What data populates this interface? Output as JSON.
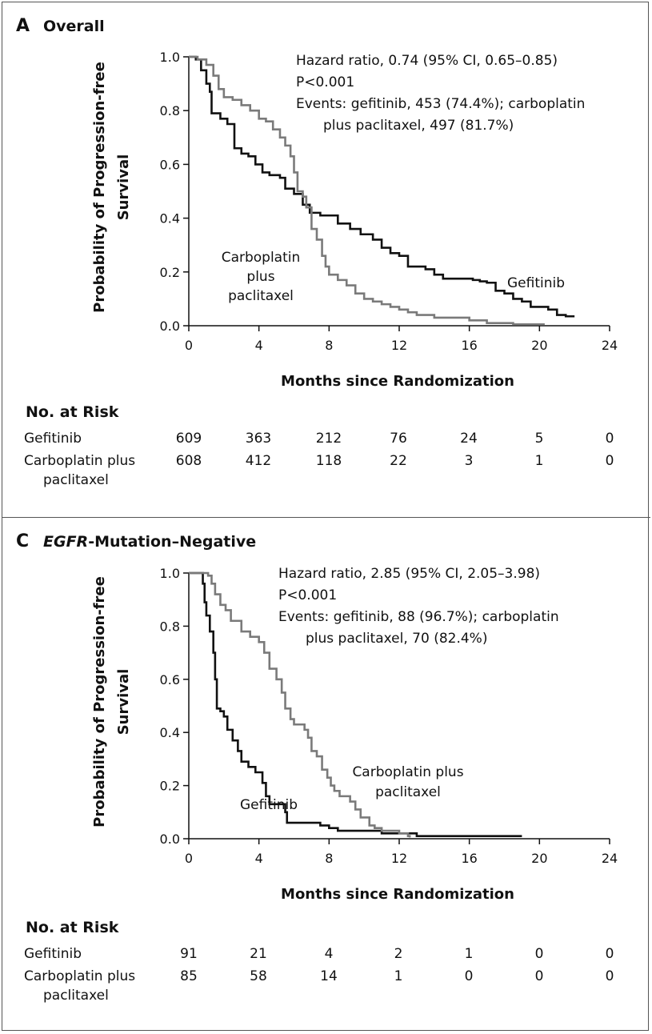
{
  "chart_data": [
    {
      "type": "line",
      "panel_letter": "A",
      "title": "Overall",
      "xlabel": "Months since Randomization",
      "ylabel_line1": "Probability of Progression-free",
      "ylabel_line2": "Survival",
      "xlim": [
        0,
        24
      ],
      "ylim": [
        0,
        1.0
      ],
      "xticks": [
        "0",
        "4",
        "8",
        "12",
        "16",
        "20",
        "24"
      ],
      "yticks": [
        "0.0",
        "0.2",
        "0.4",
        "0.6",
        "0.8",
        "1.0"
      ],
      "stats": [
        "Hazard ratio, 0.74 (95% CI, 0.65–0.85)",
        "P<0.001",
        "Events: gefitinib, 453 (74.4%); carboplatin",
        "plus paclitaxel, 497 (81.7%)"
      ],
      "series": [
        {
          "name": "Gefitinib",
          "color": "#111111",
          "label_lines": [
            "Gefitinib"
          ],
          "points": [
            [
              0,
              1.0
            ],
            [
              0.4,
              0.99
            ],
            [
              0.7,
              0.95
            ],
            [
              1.0,
              0.9
            ],
            [
              1.2,
              0.87
            ],
            [
              1.3,
              0.79
            ],
            [
              1.8,
              0.77
            ],
            [
              2.2,
              0.75
            ],
            [
              2.6,
              0.66
            ],
            [
              3.0,
              0.64
            ],
            [
              3.4,
              0.63
            ],
            [
              3.8,
              0.6
            ],
            [
              4.2,
              0.57
            ],
            [
              4.6,
              0.56
            ],
            [
              5.2,
              0.55
            ],
            [
              5.5,
              0.51
            ],
            [
              6.0,
              0.49
            ],
            [
              6.5,
              0.45
            ],
            [
              6.9,
              0.42
            ],
            [
              7.5,
              0.41
            ],
            [
              8.0,
              0.41
            ],
            [
              8.5,
              0.38
            ],
            [
              9.2,
              0.36
            ],
            [
              9.8,
              0.34
            ],
            [
              10.5,
              0.32
            ],
            [
              11.0,
              0.29
            ],
            [
              11.5,
              0.27
            ],
            [
              12.0,
              0.26
            ],
            [
              12.5,
              0.22
            ],
            [
              13.5,
              0.21
            ],
            [
              14.0,
              0.19
            ],
            [
              14.5,
              0.175
            ],
            [
              15.5,
              0.175
            ],
            [
              16.2,
              0.17
            ],
            [
              16.6,
              0.165
            ],
            [
              17.0,
              0.16
            ],
            [
              17.5,
              0.13
            ],
            [
              18.0,
              0.12
            ],
            [
              18.5,
              0.1
            ],
            [
              19.0,
              0.09
            ],
            [
              19.5,
              0.07
            ],
            [
              20.5,
              0.06
            ],
            [
              21.0,
              0.04
            ],
            [
              21.5,
              0.035
            ],
            [
              22.0,
              0.035
            ]
          ]
        },
        {
          "name": "Carboplatin plus paclitaxel",
          "color": "#7a7a7a",
          "label_lines": [
            "Carboplatin",
            "plus",
            "paclitaxel"
          ],
          "points": [
            [
              0,
              1.0
            ],
            [
              0.5,
              0.99
            ],
            [
              1.0,
              0.97
            ],
            [
              1.4,
              0.93
            ],
            [
              1.7,
              0.88
            ],
            [
              2.0,
              0.85
            ],
            [
              2.5,
              0.84
            ],
            [
              3.0,
              0.82
            ],
            [
              3.5,
              0.8
            ],
            [
              4.0,
              0.77
            ],
            [
              4.4,
              0.76
            ],
            [
              4.8,
              0.73
            ],
            [
              5.2,
              0.7
            ],
            [
              5.5,
              0.67
            ],
            [
              5.8,
              0.63
            ],
            [
              6.0,
              0.57
            ],
            [
              6.2,
              0.5
            ],
            [
              6.5,
              0.48
            ],
            [
              6.7,
              0.44
            ],
            [
              7.0,
              0.36
            ],
            [
              7.3,
              0.32
            ],
            [
              7.6,
              0.26
            ],
            [
              7.8,
              0.22
            ],
            [
              8.0,
              0.19
            ],
            [
              8.5,
              0.17
            ],
            [
              9.0,
              0.15
            ],
            [
              9.5,
              0.12
            ],
            [
              10.0,
              0.1
            ],
            [
              10.5,
              0.09
            ],
            [
              11.0,
              0.08
            ],
            [
              11.5,
              0.07
            ],
            [
              12.0,
              0.06
            ],
            [
              12.5,
              0.05
            ],
            [
              13.0,
              0.04
            ],
            [
              14.0,
              0.03
            ],
            [
              16.0,
              0.02
            ],
            [
              17.0,
              0.01
            ],
            [
              18.5,
              0.005
            ],
            [
              20.3,
              0.005
            ]
          ]
        }
      ]
    },
    {
      "type": "line",
      "panel_letter": "C",
      "title_ital": "EGFR",
      "title": "-Mutation–Negative",
      "xlabel": "Months since Randomization",
      "ylabel_line1": "Probability of Progression-free",
      "ylabel_line2": "Survival",
      "xlim": [
        0,
        24
      ],
      "ylim": [
        0,
        1.0
      ],
      "xticks": [
        "0",
        "4",
        "8",
        "12",
        "16",
        "20",
        "24"
      ],
      "yticks": [
        "0.0",
        "0.2",
        "0.4",
        "0.6",
        "0.8",
        "1.0"
      ],
      "stats": [
        "Hazard ratio, 2.85 (95% CI, 2.05–3.98)",
        "P<0.001",
        "Events: gefitinib, 88 (96.7%); carboplatin",
        "plus paclitaxel, 70 (82.4%)"
      ],
      "series": [
        {
          "name": "Gefitinib",
          "color": "#111111",
          "label_lines": [
            "Gefitinib"
          ],
          "points": [
            [
              0,
              1.0
            ],
            [
              0.7,
              1.0
            ],
            [
              0.8,
              0.96
            ],
            [
              0.9,
              0.89
            ],
            [
              1.0,
              0.84
            ],
            [
              1.2,
              0.78
            ],
            [
              1.4,
              0.7
            ],
            [
              1.5,
              0.6
            ],
            [
              1.6,
              0.49
            ],
            [
              1.8,
              0.48
            ],
            [
              2.0,
              0.46
            ],
            [
              2.2,
              0.41
            ],
            [
              2.5,
              0.37
            ],
            [
              2.8,
              0.33
            ],
            [
              3.0,
              0.29
            ],
            [
              3.4,
              0.27
            ],
            [
              3.8,
              0.25
            ],
            [
              4.2,
              0.21
            ],
            [
              4.4,
              0.16
            ],
            [
              4.6,
              0.13
            ],
            [
              5.2,
              0.13
            ],
            [
              5.5,
              0.1
            ],
            [
              5.6,
              0.06
            ],
            [
              6.0,
              0.06
            ],
            [
              7.0,
              0.06
            ],
            [
              7.5,
              0.05
            ],
            [
              8.0,
              0.04
            ],
            [
              8.3,
              0.04
            ],
            [
              8.5,
              0.03
            ],
            [
              10.0,
              0.03
            ],
            [
              11.0,
              0.02
            ],
            [
              13.0,
              0.01
            ],
            [
              19.0,
              0.01
            ]
          ]
        },
        {
          "name": "Carboplatin plus paclitaxel",
          "color": "#7a7a7a",
          "label_lines": [
            "Carboplatin plus",
            "paclitaxel"
          ],
          "points": [
            [
              0,
              1.0
            ],
            [
              0.9,
              1.0
            ],
            [
              1.1,
              0.99
            ],
            [
              1.3,
              0.96
            ],
            [
              1.5,
              0.92
            ],
            [
              1.8,
              0.88
            ],
            [
              2.1,
              0.86
            ],
            [
              2.4,
              0.82
            ],
            [
              3.0,
              0.78
            ],
            [
              3.5,
              0.76
            ],
            [
              4.0,
              0.74
            ],
            [
              4.3,
              0.7
            ],
            [
              4.6,
              0.64
            ],
            [
              5.0,
              0.6
            ],
            [
              5.3,
              0.55
            ],
            [
              5.5,
              0.49
            ],
            [
              5.8,
              0.45
            ],
            [
              6.0,
              0.43
            ],
            [
              6.6,
              0.41
            ],
            [
              6.8,
              0.38
            ],
            [
              7.0,
              0.33
            ],
            [
              7.3,
              0.31
            ],
            [
              7.6,
              0.26
            ],
            [
              7.9,
              0.23
            ],
            [
              8.1,
              0.2
            ],
            [
              8.3,
              0.18
            ],
            [
              8.6,
              0.16
            ],
            [
              9.2,
              0.14
            ],
            [
              9.5,
              0.11
            ],
            [
              9.8,
              0.08
            ],
            [
              10.3,
              0.05
            ],
            [
              10.6,
              0.04
            ],
            [
              11.0,
              0.03
            ],
            [
              12.0,
              0.02
            ],
            [
              12.5,
              0.01
            ],
            [
              12.6,
              0.005
            ]
          ]
        }
      ]
    }
  ],
  "risk_tables": [
    {
      "title": "No. at Risk",
      "rows": [
        {
          "label_lines": [
            "Gefitinib"
          ],
          "values": [
            "609",
            "363",
            "212",
            "76",
            "24",
            "5",
            "0"
          ]
        },
        {
          "label_lines": [
            "Carboplatin plus",
            "paclitaxel"
          ],
          "values": [
            "608",
            "412",
            "118",
            "22",
            "3",
            "1",
            "0"
          ]
        }
      ]
    },
    {
      "title": "No. at Risk",
      "rows": [
        {
          "label_lines": [
            "Gefitinib"
          ],
          "values": [
            "91",
            "21",
            "4",
            "2",
            "1",
            "0",
            "0"
          ]
        },
        {
          "label_lines": [
            "Carboplatin plus",
            "paclitaxel"
          ],
          "values": [
            "85",
            "58",
            "14",
            "1",
            "0",
            "0",
            "0"
          ]
        }
      ]
    }
  ]
}
